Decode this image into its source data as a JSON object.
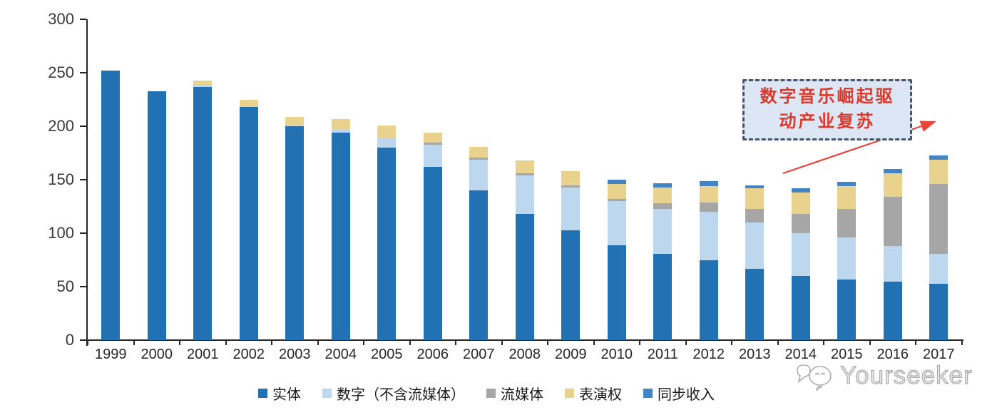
{
  "chart_data": {
    "type": "bar",
    "stacked": true,
    "title": "",
    "xlabel": "",
    "ylabel": "",
    "ylim": [
      0,
      300
    ],
    "yticks": [
      0,
      50,
      100,
      150,
      200,
      250,
      300
    ],
    "grid": false,
    "legend_position": "bottom",
    "categories": [
      "1999",
      "2000",
      "2001",
      "2002",
      "2003",
      "2004",
      "2005",
      "2006",
      "2007",
      "2008",
      "2009",
      "2010",
      "2011",
      "2012",
      "2013",
      "2014",
      "2015",
      "2016",
      "2017"
    ],
    "series": [
      {
        "name": "实体",
        "color": "#2271B3",
        "values": [
          252,
          233,
          237,
          218,
          200,
          194,
          180,
          162,
          140,
          118,
          103,
          89,
          81,
          75,
          67,
          60,
          57,
          55,
          53
        ]
      },
      {
        "name": "数字（不含流媒体）",
        "color": "#BDD7EE",
        "values": [
          0,
          0,
          1,
          1,
          1,
          3,
          9,
          21,
          29,
          36,
          40,
          41,
          42,
          45,
          43,
          40,
          39,
          33,
          28
        ]
      },
      {
        "name": "流媒体",
        "color": "#A6A6A6",
        "values": [
          0,
          0,
          0,
          0,
          0,
          0,
          0,
          2,
          2,
          2,
          2,
          2,
          5,
          9,
          13,
          18,
          27,
          46,
          65
        ]
      },
      {
        "name": "表演权",
        "color": "#E9D28D",
        "values": [
          0,
          0,
          5,
          6,
          8,
          10,
          12,
          9,
          10,
          12,
          13,
          14,
          15,
          15,
          19,
          20,
          21,
          22,
          23
        ]
      },
      {
        "name": "同步收入",
        "color": "#4284C4",
        "values": [
          0,
          0,
          0,
          0,
          0,
          0,
          0,
          0,
          0,
          0,
          0,
          4,
          4,
          5,
          3,
          4,
          4,
          4,
          4
        ]
      }
    ]
  },
  "annotation": {
    "line1": "数字音乐崛起驱",
    "line2": "动产业复苏",
    "text_color": "#D93A2B",
    "box_fill": "#DCE6F4",
    "box_border": "#44546A",
    "arrow_color": "#E8443A"
  },
  "watermark": {
    "text": "Yourseeker",
    "logo": "chat-smiley-logo"
  }
}
